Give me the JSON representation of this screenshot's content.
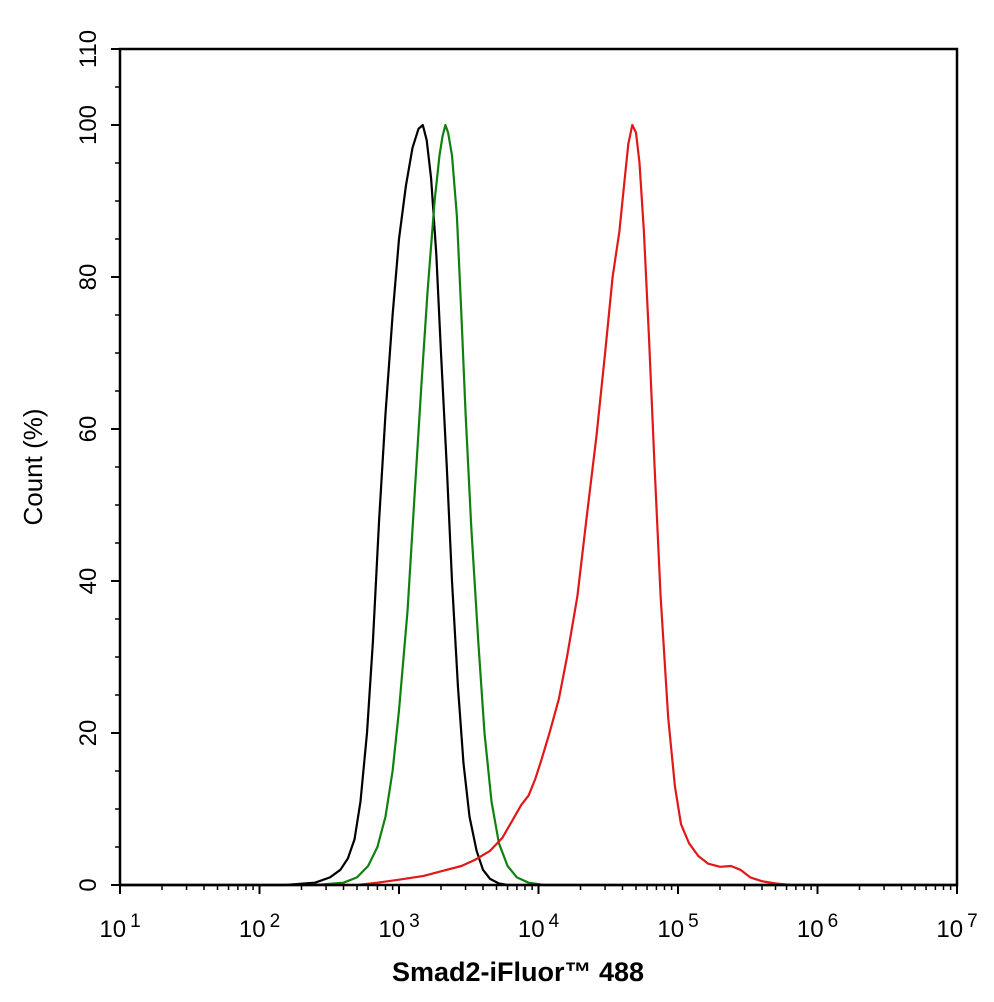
{
  "chart_data": {
    "type": "line",
    "title": "",
    "xlabel": "Smad2-iFluor™ 488",
    "ylabel": "Count  (%)",
    "x_scale": "log",
    "xlim": [
      10,
      10000000
    ],
    "ylim": [
      0,
      110
    ],
    "grid": false,
    "legend": "none",
    "x_ticks": [
      {
        "value": 10,
        "base": "10",
        "exp": "1"
      },
      {
        "value": 100,
        "base": "10",
        "exp": "2"
      },
      {
        "value": 1000,
        "base": "10",
        "exp": "3"
      },
      {
        "value": 10000,
        "base": "10",
        "exp": "4"
      },
      {
        "value": 100000,
        "base": "10",
        "exp": "5"
      },
      {
        "value": 1000000,
        "base": "10",
        "exp": "6"
      },
      {
        "value": 10000000,
        "base": "10",
        "exp": "7"
      }
    ],
    "y_ticks": [
      {
        "value": 0,
        "label": "0"
      },
      {
        "value": 20,
        "label": "20"
      },
      {
        "value": 40,
        "label": "40"
      },
      {
        "value": 60,
        "label": "60"
      },
      {
        "value": 80,
        "label": "80"
      },
      {
        "value": 100,
        "label": "100"
      },
      {
        "value": 110,
        "label": "110"
      }
    ],
    "series": [
      {
        "color": "#000000",
        "points": [
          [
            10,
            0
          ],
          [
            150,
            0
          ],
          [
            250,
            0.3
          ],
          [
            320,
            1
          ],
          [
            380,
            2
          ],
          [
            430,
            3.5
          ],
          [
            480,
            6
          ],
          [
            530,
            11
          ],
          [
            590,
            20
          ],
          [
            650,
            32
          ],
          [
            720,
            48
          ],
          [
            800,
            62
          ],
          [
            900,
            75
          ],
          [
            1000,
            85
          ],
          [
            1120,
            92
          ],
          [
            1250,
            97
          ],
          [
            1380,
            99.5
          ],
          [
            1480,
            100
          ],
          [
            1580,
            98
          ],
          [
            1700,
            93
          ],
          [
            1850,
            83
          ],
          [
            2000,
            70
          ],
          [
            2200,
            55
          ],
          [
            2400,
            40
          ],
          [
            2650,
            26
          ],
          [
            2900,
            16
          ],
          [
            3200,
            9
          ],
          [
            3600,
            4.5
          ],
          [
            4000,
            2
          ],
          [
            4500,
            0.8
          ],
          [
            5200,
            0.2
          ],
          [
            6000,
            0
          ],
          [
            10000000,
            0
          ]
        ]
      },
      {
        "color": "#108010",
        "points": [
          [
            10,
            0
          ],
          [
            250,
            0
          ],
          [
            400,
            0.3
          ],
          [
            500,
            1
          ],
          [
            600,
            2.5
          ],
          [
            700,
            5
          ],
          [
            800,
            9
          ],
          [
            900,
            15
          ],
          [
            1000,
            23
          ],
          [
            1150,
            36
          ],
          [
            1300,
            52
          ],
          [
            1450,
            66
          ],
          [
            1600,
            78
          ],
          [
            1800,
            90
          ],
          [
            1950,
            96
          ],
          [
            2050,
            98.5
          ],
          [
            2150,
            100
          ],
          [
            2250,
            99
          ],
          [
            2400,
            96
          ],
          [
            2600,
            88
          ],
          [
            2800,
            75
          ],
          [
            3000,
            62
          ],
          [
            3300,
            47
          ],
          [
            3700,
            32
          ],
          [
            4100,
            20
          ],
          [
            4600,
            11
          ],
          [
            5200,
            5.5
          ],
          [
            6000,
            2.5
          ],
          [
            7000,
            1
          ],
          [
            8500,
            0.3
          ],
          [
            11000,
            0
          ],
          [
            10000000,
            0
          ]
        ]
      },
      {
        "color": "#e01818",
        "points": [
          [
            10,
            0
          ],
          [
            500,
            0
          ],
          [
            700,
            0.3
          ],
          [
            1000,
            0.7
          ],
          [
            1500,
            1.2
          ],
          [
            2000,
            1.8
          ],
          [
            2800,
            2.5
          ],
          [
            3500,
            3.3
          ],
          [
            4500,
            4.5
          ],
          [
            5500,
            6.2
          ],
          [
            6500,
            8.5
          ],
          [
            7500,
            10.5
          ],
          [
            8500,
            11.8
          ],
          [
            9500,
            14
          ],
          [
            10500,
            16.5
          ],
          [
            12000,
            20
          ],
          [
            14000,
            24.5
          ],
          [
            16000,
            30
          ],
          [
            19000,
            38
          ],
          [
            22000,
            48
          ],
          [
            26000,
            59
          ],
          [
            30000,
            70
          ],
          [
            34000,
            80
          ],
          [
            38000,
            86
          ],
          [
            41000,
            92
          ],
          [
            44000,
            97.5
          ],
          [
            47000,
            100
          ],
          [
            50000,
            99
          ],
          [
            53000,
            95
          ],
          [
            57000,
            86
          ],
          [
            62000,
            72
          ],
          [
            68000,
            55
          ],
          [
            75000,
            38
          ],
          [
            85000,
            22
          ],
          [
            95000,
            13
          ],
          [
            105000,
            8
          ],
          [
            120000,
            5.5
          ],
          [
            140000,
            3.8
          ],
          [
            165000,
            2.8
          ],
          [
            200000,
            2.4
          ],
          [
            240000,
            2.5
          ],
          [
            280000,
            2
          ],
          [
            330000,
            1
          ],
          [
            400000,
            0.5
          ],
          [
            500000,
            0.2
          ],
          [
            650000,
            0
          ],
          [
            10000000,
            0
          ]
        ]
      }
    ]
  }
}
